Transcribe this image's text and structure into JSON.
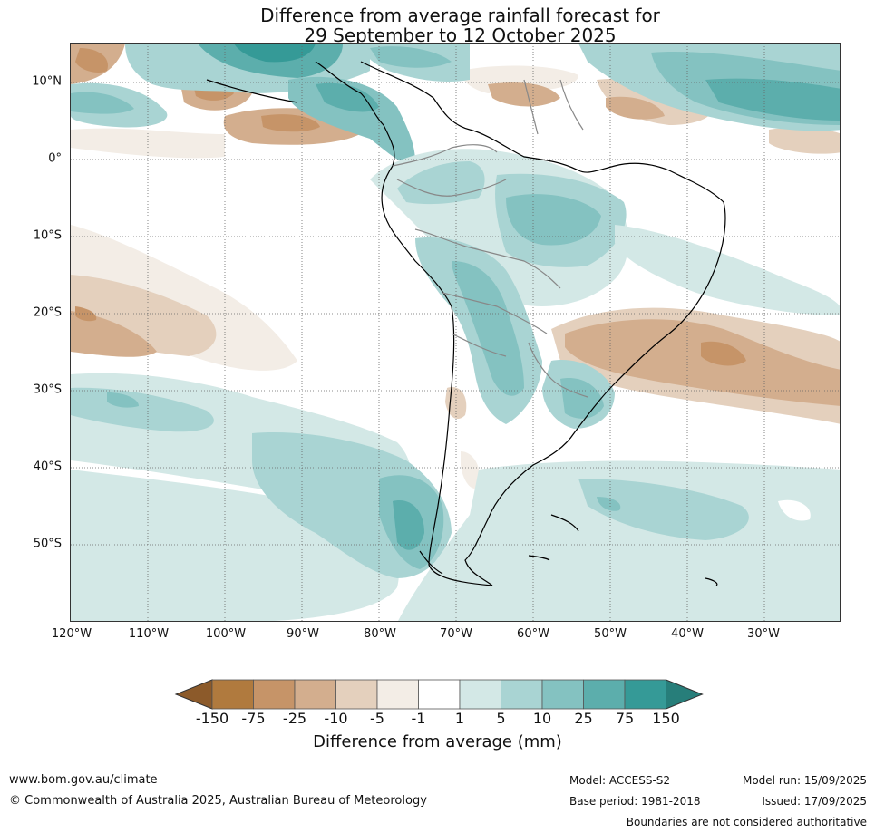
{
  "title": {
    "line1": "Difference from average rainfall forecast for",
    "line2": "29 September to 12 October 2025"
  },
  "map": {
    "lat_labels": [
      "10°N",
      "0°",
      "10°S",
      "20°S",
      "30°S",
      "40°S",
      "50°S"
    ],
    "lon_labels": [
      "120°W",
      "110°W",
      "100°W",
      "90°W",
      "80°W",
      "70°W",
      "60°W",
      "50°W",
      "40°W",
      "30°W"
    ]
  },
  "colorbar": {
    "title": "Difference from average (mm)",
    "tick_labels": [
      "-150",
      "-75",
      "-25",
      "-10",
      "-5",
      "-1",
      "1",
      "5",
      "10",
      "25",
      "75",
      "150"
    ],
    "colors": [
      "#8c5a2a",
      "#b07a3e",
      "#c69468",
      "#d3ae8e",
      "#e4d0bd",
      "#f3ede6",
      "#ffffff",
      "#d3e8e6",
      "#a9d4d3",
      "#84c2c1",
      "#5caeac",
      "#359a97",
      "#277e7a"
    ]
  },
  "footer": {
    "website": "www.bom.gov.au/climate",
    "copyright": "© Commonwealth of Australia 2025, Australian Bureau of Meteorology",
    "model": "Model: ACCESS-S2",
    "base_period": "Base period: 1981-2018",
    "model_run": "Model run: 15/09/2025",
    "issued": "Issued: 17/09/2025",
    "disclaimer": "Boundaries are not considered authoritative"
  }
}
